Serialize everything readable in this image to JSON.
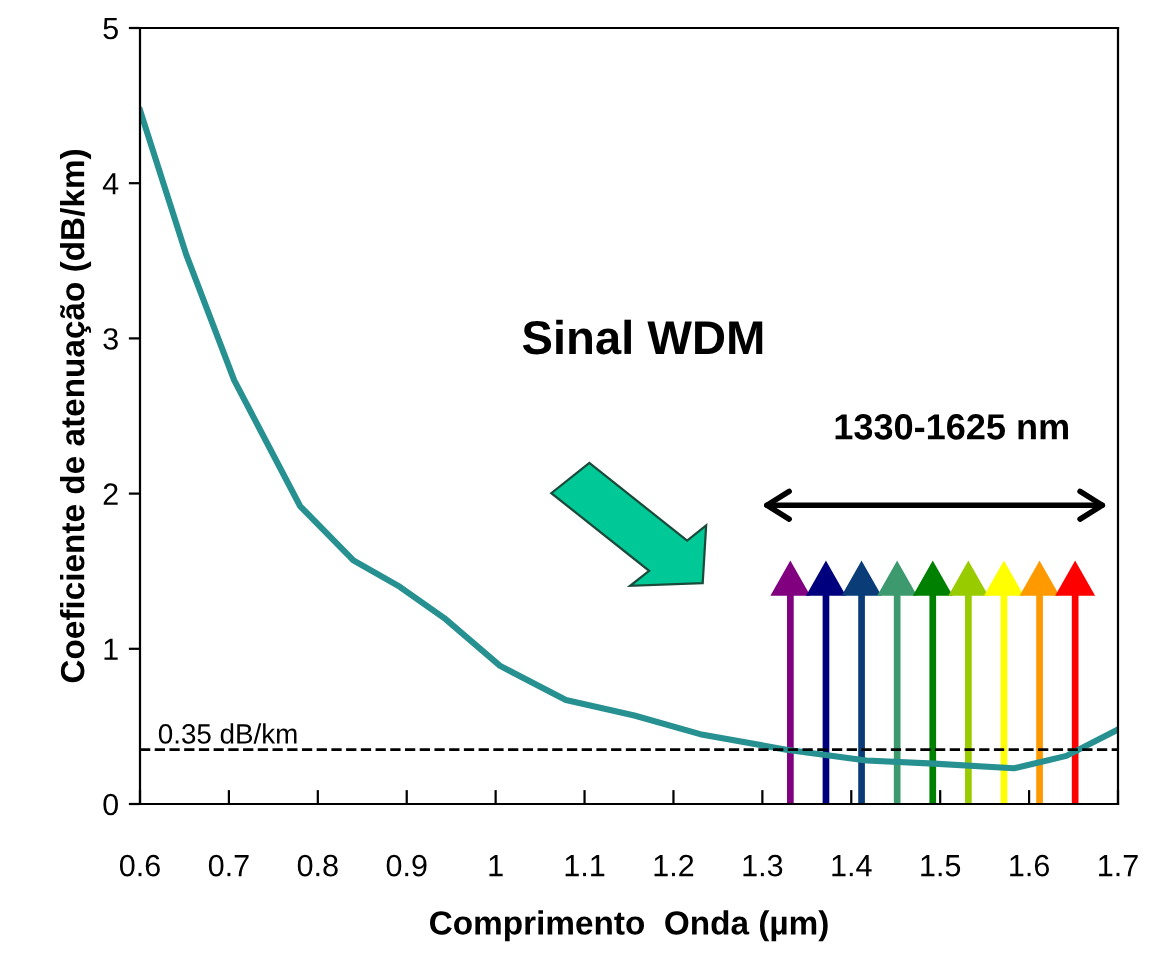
{
  "chart_data": {
    "type": "line",
    "xlabel": "Comprimento  Onda (µm)",
    "ylabel": "Coeficiente de atenuação (dB/km)",
    "series": [
      {
        "color": "#279090",
        "x": [
          0.6,
          0.652,
          0.706,
          0.78,
          0.84,
          0.892,
          0.944,
          1.005,
          1.079,
          1.156,
          1.23,
          1.327,
          1.417,
          1.493,
          1.583,
          1.642,
          1.7
        ],
        "values": [
          4.47,
          3.54,
          2.73,
          1.92,
          1.57,
          1.4,
          1.19,
          0.89,
          0.67,
          0.57,
          0.45,
          0.35,
          0.28,
          0.26,
          0.23,
          0.31,
          0.48
        ]
      }
    ],
    "xlim": [
      0.6,
      1.7
    ],
    "xticks": [
      0.6,
      0.7,
      0.8,
      0.9,
      1,
      1.1,
      1.2,
      1.3,
      1.4,
      1.5,
      1.6,
      1.7
    ],
    "ylim": [
      0,
      5
    ],
    "yticks": [
      0,
      1,
      2,
      3,
      4,
      5
    ],
    "ref_lines": [
      {
        "axis": "y",
        "value": 0.35,
        "label": "0.35 dB/km",
        "color": "#000000",
        "line_style": "dashed"
      }
    ],
    "annotations": [
      "Sinal WDM",
      "1330-1625 nm"
    ],
    "grid": false,
    "legend": false,
    "marker": "none",
    "line_style": "solid"
  }
}
